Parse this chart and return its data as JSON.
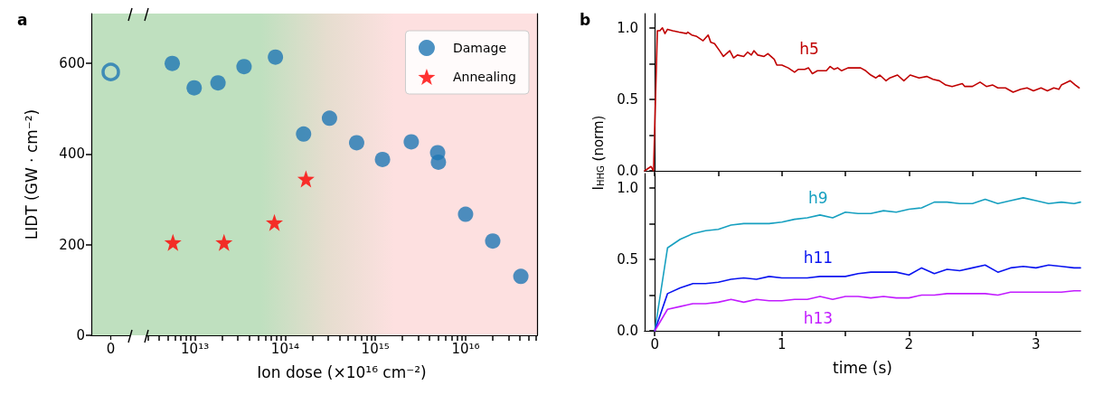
{
  "chart_data": [
    {
      "type": "scatter",
      "title": "a",
      "ylabel": "LIDT (GW · cm⁻²)",
      "categories": [
        "0"
      ],
      "ylim": [
        0,
        710
      ],
      "yticks": [
        0,
        200,
        400,
        600
      ],
      "marker": "circle",
      "series": [
        {
          "color": "#1f77b4",
          "values": [
            581
          ]
        }
      ]
    },
    {
      "type": "scatter",
      "xlabel": "Ion dose (×10¹⁶ cm⁻²)",
      "log": "x",
      "xlim": [
        2900000000000.0,
        6.2e+16
      ],
      "ylim": [
        0,
        710
      ],
      "tick_labels": "x",
      "legend": "top right",
      "xticks": [
        {
          "value": 3000000000000.0,
          "label": null
        },
        {
          "value": 4000000000000.0,
          "label": null
        },
        {
          "value": 5000000000000.0,
          "label": null
        },
        {
          "value": 6000000000000.0,
          "label": null
        },
        {
          "value": 7000000000000.0,
          "label": null
        },
        {
          "value": 8000000000000.0,
          "label": null
        },
        {
          "value": 9000000000000.0,
          "label": null
        },
        {
          "value": 10000000000000.0,
          "label": "10¹³"
        },
        {
          "value": 20000000000000.0,
          "label": null
        },
        {
          "value": 30000000000000.0,
          "label": null
        },
        {
          "value": 40000000000000.0,
          "label": null
        },
        {
          "value": 50000000000000.0,
          "label": null
        },
        {
          "value": 60000000000000.0,
          "label": null
        },
        {
          "value": 70000000000000.0,
          "label": null
        },
        {
          "value": 80000000000000.0,
          "label": null
        },
        {
          "value": 90000000000000.0,
          "label": null
        },
        {
          "value": 100000000000000.0,
          "label": "10¹⁴"
        },
        {
          "value": 200000000000000.0,
          "label": null
        },
        {
          "value": 300000000000000.0,
          "label": null
        },
        {
          "value": 400000000000000.0,
          "label": null
        },
        {
          "value": 500000000000000.0,
          "label": null
        },
        {
          "value": 600000000000000.0,
          "label": null
        },
        {
          "value": 700000000000000.0,
          "label": null
        },
        {
          "value": 800000000000000.0,
          "label": null
        },
        {
          "value": 900000000000000.0,
          "label": null
        },
        {
          "value": 1000000000000000.0,
          "label": "10¹⁵"
        },
        {
          "value": 2000000000000000.0,
          "label": null
        },
        {
          "value": 3000000000000000.0,
          "label": null
        },
        {
          "value": 4000000000000000.0,
          "label": null
        },
        {
          "value": 5000000000000000.0,
          "label": null
        },
        {
          "value": 6000000000000000.0,
          "label": null
        },
        {
          "value": 7000000000000000.0,
          "label": null
        },
        {
          "value": 8000000000000000.0,
          "label": null
        },
        {
          "value": 9000000000000000.0,
          "label": null
        },
        {
          "value": 1e+16,
          "label": "10¹⁶"
        },
        {
          "value": 2e+16,
          "label": null
        },
        {
          "value": 3e+16,
          "label": null
        },
        {
          "value": 4e+16,
          "label": null
        },
        {
          "value": 5e+16,
          "label": null
        },
        {
          "value": 6e+16,
          "label": null
        }
      ],
      "series": [
        {
          "name": "Damage",
          "color": "#1f77b4",
          "marker": "circle",
          "x": [
            5600000000000.0,
            9800000000000.0,
            18000000000000.0,
            35000000000000.0,
            78000000000000.0,
            160000000000000.0,
            310000000000000.0,
            620000000000000.0,
            1200000000000000.0,
            2500000000000000.0,
            4900000000000000.0,
            5000000000000000.0,
            1e+16,
            2e+16,
            4.1e+16
          ],
          "values": [
            600,
            546,
            557,
            593,
            614,
            444,
            479,
            425,
            388,
            427,
            403,
            382,
            267,
            208,
            130
          ]
        },
        {
          "name": "Annealing",
          "color": "#ff0000",
          "marker": "star",
          "x": [
            5700000000000.0,
            21000000000000.0,
            76000000000000.0,
            170000000000000.0
          ],
          "values": [
            205,
            205,
            249,
            345
          ]
        }
      ]
    },
    {
      "type": "line",
      "title": "b",
      "xlim": [
        -0.08,
        3.35
      ],
      "ylim": [
        0,
        1.1
      ],
      "tick_labels": "y",
      "xticks": [
        0,
        {
          "value": 0.5,
          "label": null
        },
        1,
        {
          "value": 1.5,
          "label": null
        },
        2,
        {
          "value": 2.5,
          "label": null
        },
        3
      ],
      "yticks": [
        {
          "value": 0,
          "label": "0.0"
        },
        {
          "value": 0.25,
          "label": null
        },
        {
          "value": 0.5,
          "label": "0.5"
        },
        {
          "value": 0.75,
          "label": null
        },
        {
          "value": 1,
          "label": "1.0"
        }
      ],
      "series": [
        {
          "name": "h5",
          "color": "#c00000",
          "x": [
            -0.08,
            -0.03,
            -0.01,
            0.02,
            0.04,
            0.06,
            0.08,
            0.1,
            0.14,
            0.19,
            0.25,
            0.26,
            0.29,
            0.33,
            0.38,
            0.42,
            0.44,
            0.47,
            0.51,
            0.54,
            0.59,
            0.62,
            0.65,
            0.7,
            0.73,
            0.76,
            0.78,
            0.81,
            0.86,
            0.89,
            0.94,
            0.96,
            1.0,
            1.05,
            1.1,
            1.13,
            1.18,
            1.21,
            1.24,
            1.28,
            1.35,
            1.38,
            1.41,
            1.44,
            1.47,
            1.52,
            1.58,
            1.62,
            1.66,
            1.7,
            1.74,
            1.77,
            1.82,
            1.85,
            1.91,
            1.96,
            2.01,
            2.08,
            2.14,
            2.19,
            2.24,
            2.29,
            2.34,
            2.42,
            2.44,
            2.5,
            2.56,
            2.61,
            2.66,
            2.7,
            2.76,
            2.82,
            2.88,
            2.93,
            2.98,
            3.04,
            3.09,
            3.14,
            3.18,
            3.2,
            3.27,
            3.31,
            3.34
          ],
          "values": [
            0,
            0.03,
            0,
            0.98,
            0.98,
            1.0,
            0.96,
            0.99,
            0.98,
            0.97,
            0.96,
            0.97,
            0.95,
            0.94,
            0.91,
            0.95,
            0.9,
            0.89,
            0.84,
            0.8,
            0.84,
            0.79,
            0.81,
            0.8,
            0.83,
            0.81,
            0.84,
            0.81,
            0.8,
            0.82,
            0.78,
            0.74,
            0.74,
            0.72,
            0.69,
            0.71,
            0.71,
            0.72,
            0.68,
            0.7,
            0.7,
            0.73,
            0.71,
            0.72,
            0.7,
            0.72,
            0.72,
            0.72,
            0.7,
            0.67,
            0.65,
            0.67,
            0.63,
            0.65,
            0.67,
            0.63,
            0.67,
            0.65,
            0.66,
            0.64,
            0.63,
            0.6,
            0.59,
            0.61,
            0.59,
            0.59,
            0.62,
            0.59,
            0.6,
            0.58,
            0.58,
            0.55,
            0.57,
            0.58,
            0.56,
            0.58,
            0.56,
            0.58,
            0.57,
            0.6,
            0.63,
            0.6,
            0.58
          ]
        }
      ]
    },
    {
      "type": "line",
      "xlabel": "time (s)",
      "ylabel": "I$_{HHG}$ (norm)",
      "xlim": [
        -0.08,
        3.35
      ],
      "ylim": [
        0,
        1.1
      ],
      "xticks": [
        0,
        {
          "value": 0.5,
          "label": null
        },
        1,
        {
          "value": 1.5,
          "label": null
        },
        2,
        {
          "value": 2.5,
          "label": null
        },
        3
      ],
      "yticks": [
        {
          "value": 0,
          "label": "0.0"
        },
        {
          "value": 0.25,
          "label": null
        },
        {
          "value": 0.5,
          "label": "0.5"
        },
        {
          "value": 0.75,
          "label": null
        },
        {
          "value": 1,
          "label": "1.0"
        }
      ],
      "x": [
        0,
        0.1,
        0.2,
        0.3,
        0.4,
        0.5,
        0.6,
        0.7,
        0.8,
        0.9,
        1.0,
        1.1,
        1.2,
        1.3,
        1.4,
        1.5,
        1.6,
        1.7,
        1.8,
        1.9,
        2.0,
        2.1,
        2.2,
        2.3,
        2.4,
        2.5,
        2.6,
        2.7,
        2.8,
        2.9,
        3.0,
        3.1,
        3.2,
        3.3,
        3.35
      ],
      "series": [
        {
          "name": "h9",
          "color": "#17a0c0",
          "values": [
            0,
            0.58,
            0.64,
            0.68,
            0.7,
            0.71,
            0.74,
            0.75,
            0.75,
            0.75,
            0.76,
            0.78,
            0.79,
            0.81,
            0.79,
            0.83,
            0.82,
            0.82,
            0.84,
            0.83,
            0.85,
            0.86,
            0.9,
            0.9,
            0.89,
            0.89,
            0.92,
            0.89,
            0.91,
            0.93,
            0.91,
            0.89,
            0.9,
            0.89,
            0.9
          ]
        },
        {
          "name": "h11",
          "color": "#0a14f0",
          "values": [
            0,
            0.26,
            0.3,
            0.33,
            0.33,
            0.34,
            0.36,
            0.37,
            0.36,
            0.38,
            0.37,
            0.37,
            0.37,
            0.38,
            0.38,
            0.38,
            0.4,
            0.41,
            0.41,
            0.41,
            0.39,
            0.44,
            0.4,
            0.43,
            0.42,
            0.44,
            0.46,
            0.41,
            0.44,
            0.45,
            0.44,
            0.46,
            0.45,
            0.44,
            0.44
          ]
        },
        {
          "name": "h13",
          "color": "#c21cff",
          "values": [
            0,
            0.15,
            0.17,
            0.19,
            0.19,
            0.2,
            0.22,
            0.2,
            0.22,
            0.21,
            0.21,
            0.22,
            0.22,
            0.24,
            0.22,
            0.24,
            0.24,
            0.23,
            0.24,
            0.23,
            0.23,
            0.25,
            0.25,
            0.26,
            0.26,
            0.26,
            0.26,
            0.25,
            0.27,
            0.27,
            0.27,
            0.27,
            0.27,
            0.28,
            0.28
          ]
        }
      ]
    }
  ]
}
